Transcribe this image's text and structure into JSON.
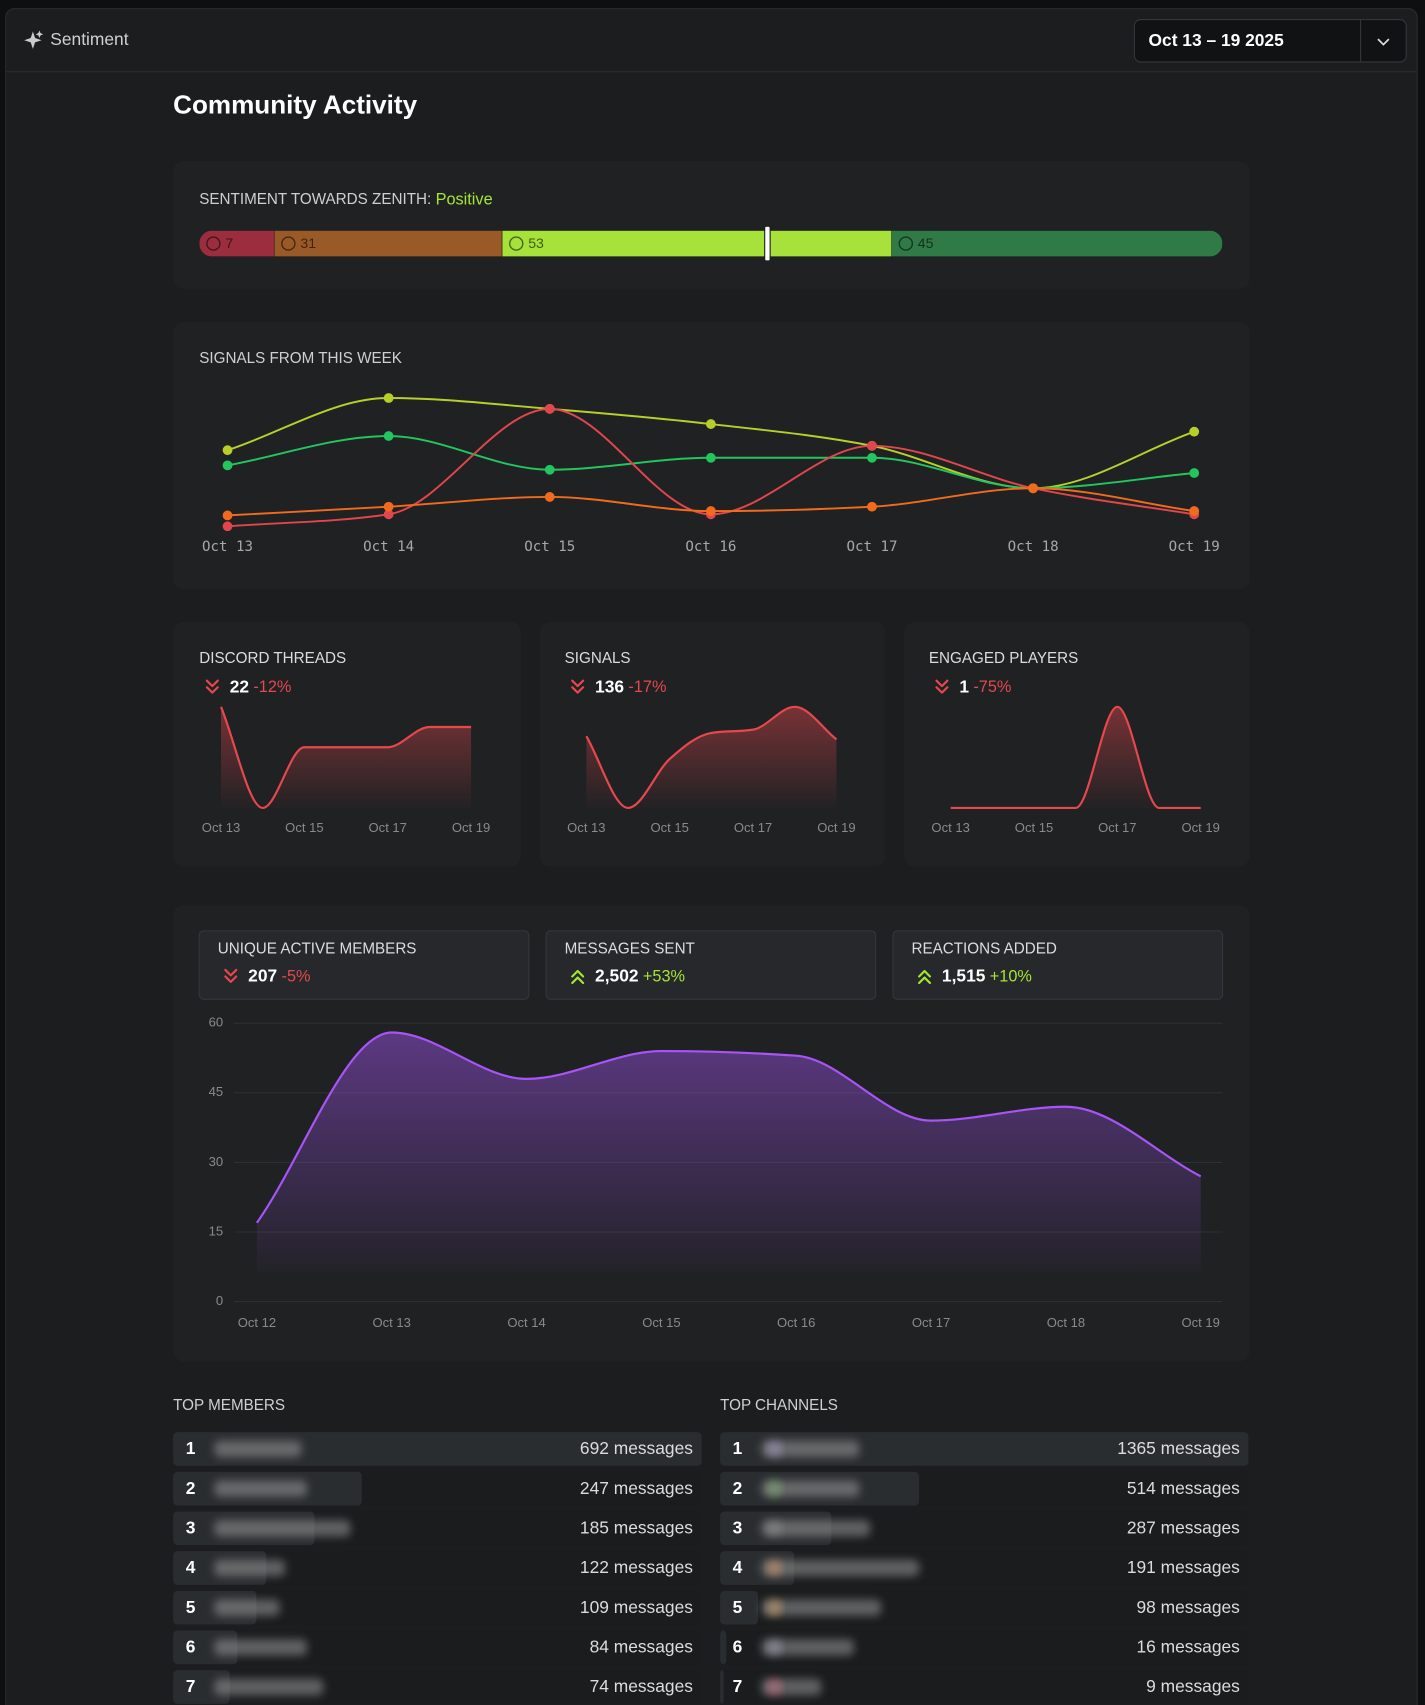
{
  "header": {
    "title": "Sentiment",
    "date_range": "Oct 13 – 19 2025"
  },
  "page_title": "Community Activity",
  "colors": {
    "up": "#a3e635",
    "down": "#e5484d"
  },
  "sentiment": {
    "type": "bar",
    "label": "SENTIMENT TOWARDS ZENITH:",
    "overall": "Positive",
    "overall_color": "#a3e635",
    "values": [
      7,
      31,
      53,
      45
    ],
    "colors": [
      "#9b2d3f",
      "#9a5a27",
      "#a6e23a",
      "#2f7a47"
    ]
  },
  "signals_chart": {
    "type": "line",
    "title": "SIGNALS FROM THIS WEEK",
    "categories": [
      "Oct 13",
      "Oct 14",
      "Oct 15",
      "Oct 16",
      "Oct 17",
      "Oct 18",
      "Oct 19"
    ],
    "series": [
      {
        "color": "#b8cf2a",
        "values": [
          76,
          124,
          114,
          100,
          80,
          41,
          93
        ]
      },
      {
        "color": "#22c55e",
        "values": [
          62,
          89,
          58,
          69,
          69,
          41,
          55
        ]
      },
      {
        "color": "#e0464b",
        "values": [
          6,
          17,
          114,
          17,
          80,
          41,
          17
        ]
      },
      {
        "color": "#f26b1d",
        "values": [
          16,
          24,
          33,
          20,
          24,
          41,
          20
        ]
      }
    ]
  },
  "sparklines": [
    {
      "type": "area",
      "title": "DISCORD THREADS",
      "total": 22,
      "change": {
        "value": -12,
        "label": "-12%"
      },
      "color": "#e5484d",
      "categories": [
        "Oct 13",
        null,
        "Oct 15",
        null,
        "Oct 17",
        null,
        "Oct 19"
      ],
      "values": [
        5,
        0,
        3,
        3,
        3,
        4,
        4
      ]
    },
    {
      "type": "area",
      "title": "SIGNALS",
      "total": 136,
      "change": {
        "value": -17,
        "label": "-17%"
      },
      "color": "#e5484d",
      "categories": [
        "Oct 13",
        null,
        "Oct 15",
        null,
        "Oct 17",
        null,
        "Oct 19"
      ],
      "values": [
        22,
        0,
        15,
        23,
        24,
        31,
        21
      ]
    },
    {
      "type": "area",
      "title": "ENGAGED PLAYERS",
      "total": 1,
      "change": {
        "value": -75,
        "label": "-75%"
      },
      "color": "#e5484d",
      "categories": [
        "Oct 13",
        null,
        "Oct 15",
        null,
        "Oct 17",
        null,
        "Oct 19"
      ],
      "values": [
        0,
        0,
        0,
        0,
        1,
        0,
        0
      ]
    }
  ],
  "stats": [
    {
      "title": "UNIQUE ACTIVE MEMBERS",
      "value": 207,
      "change": {
        "value": -5,
        "label": "-5%"
      }
    },
    {
      "title": "MESSAGES SENT",
      "value": 2502,
      "value_label": "2,502",
      "change": {
        "value": 53,
        "label": "+53%"
      }
    },
    {
      "title": "REACTIONS ADDED",
      "value": 1515,
      "value_label": "1,515",
      "change": {
        "value": 10,
        "label": "+10%"
      }
    }
  ],
  "members_chart": {
    "type": "area",
    "categories": [
      "Oct 12",
      "Oct 13",
      "Oct 14",
      "Oct 15",
      "Oct 16",
      "Oct 17",
      "Oct 18",
      "Oct 19"
    ],
    "values": [
      17,
      58,
      48,
      54,
      53,
      39,
      42,
      27
    ],
    "ylim": [
      0,
      60
    ],
    "yticks": [
      0,
      15,
      30,
      45,
      60
    ],
    "grid": true,
    "color": "#a855f7"
  },
  "top_members": {
    "title": "TOP MEMBERS",
    "rows": [
      {
        "rank": 1,
        "value": 692,
        "value_label": "692 messages"
      },
      {
        "rank": 2,
        "value": 247,
        "value_label": "247 messages"
      },
      {
        "rank": 3,
        "value": 185,
        "value_label": "185 messages"
      },
      {
        "rank": 4,
        "value": 122,
        "value_label": "122 messages"
      },
      {
        "rank": 5,
        "value": 109,
        "value_label": "109 messages"
      },
      {
        "rank": 6,
        "value": 84,
        "value_label": "84 messages"
      },
      {
        "rank": 7,
        "value": 74,
        "value_label": "74 messages"
      }
    ]
  },
  "top_channels": {
    "title": "TOP CHANNELS",
    "rows": [
      {
        "rank": 1,
        "value": 1365,
        "value_label": "1365 messages"
      },
      {
        "rank": 2,
        "value": 514,
        "value_label": "514 messages"
      },
      {
        "rank": 3,
        "value": 287,
        "value_label": "287 messages"
      },
      {
        "rank": 4,
        "value": 191,
        "value_label": "191 messages"
      },
      {
        "rank": 5,
        "value": 98,
        "value_label": "98 messages"
      },
      {
        "rank": 6,
        "value": 16,
        "value_label": "16 messages"
      },
      {
        "rank": 7,
        "value": 9,
        "value_label": "9 messages"
      }
    ]
  }
}
